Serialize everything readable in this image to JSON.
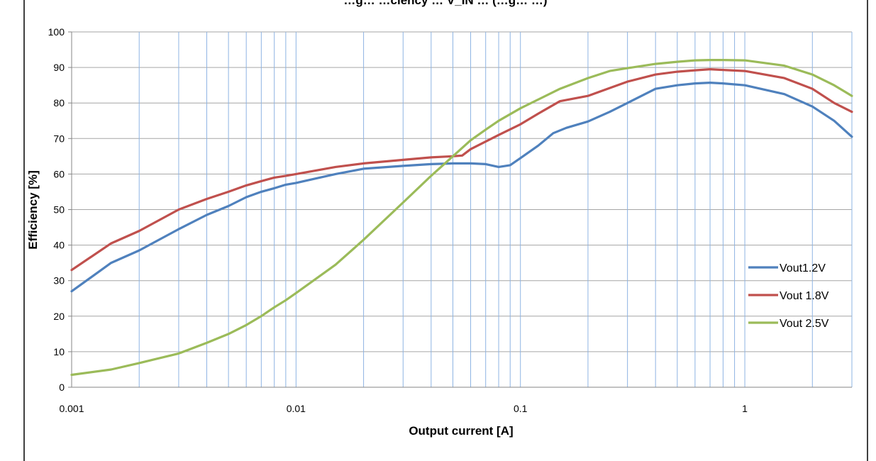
{
  "chart_data": {
    "type": "line",
    "title": "…g… …ciency … V_IN … (…g… …)",
    "xlabel": "Output current [A]",
    "ylabel": "Efficiency [%]",
    "x_scale": "log",
    "xlim": [
      0.001,
      3
    ],
    "ylim": [
      0,
      100
    ],
    "y_ticks": [
      0,
      10,
      20,
      30,
      40,
      50,
      60,
      70,
      80,
      90,
      100
    ],
    "x_tick_labels": [
      {
        "value": 0.001,
        "label": "0.001"
      },
      {
        "value": 0.01,
        "label": "0.01"
      },
      {
        "value": 0.1,
        "label": "0.1"
      },
      {
        "value": 1,
        "label": "1"
      }
    ],
    "x_minor_gridlines": [
      0.002,
      0.003,
      0.004,
      0.005,
      0.006,
      0.007,
      0.008,
      0.009,
      0.01,
      0.02,
      0.03,
      0.04,
      0.05,
      0.06,
      0.07,
      0.08,
      0.09,
      0.1,
      0.2,
      0.3,
      0.4,
      0.5,
      0.6,
      0.7,
      0.8,
      0.9,
      1,
      2,
      3
    ],
    "grid": true,
    "legend_position": "right",
    "series": [
      {
        "name": "Vout1.2V",
        "color": "#4f81bd",
        "x": [
          0.001,
          0.0015,
          0.002,
          0.003,
          0.004,
          0.005,
          0.006,
          0.007,
          0.008,
          0.009,
          0.01,
          0.015,
          0.02,
          0.03,
          0.04,
          0.05,
          0.06,
          0.07,
          0.08,
          0.09,
          0.1,
          0.12,
          0.14,
          0.16,
          0.2,
          0.25,
          0.3,
          0.4,
          0.5,
          0.6,
          0.7,
          0.8,
          1,
          1.5,
          2,
          2.5,
          3
        ],
        "y": [
          27,
          35,
          38.5,
          44.5,
          48.5,
          51,
          53.5,
          55,
          56,
          57,
          57.5,
          60,
          61.5,
          62.3,
          62.8,
          63,
          63,
          62.8,
          62,
          62.5,
          64.5,
          68,
          71.5,
          73,
          74.8,
          77.5,
          80,
          84,
          85,
          85.5,
          85.7,
          85.5,
          85,
          82.5,
          79,
          75,
          70.5
        ]
      },
      {
        "name": "Vout 1.8V",
        "color": "#c0504d",
        "x": [
          0.001,
          0.0015,
          0.002,
          0.003,
          0.004,
          0.005,
          0.006,
          0.007,
          0.008,
          0.009,
          0.01,
          0.015,
          0.02,
          0.03,
          0.04,
          0.05,
          0.055,
          0.06,
          0.08,
          0.1,
          0.12,
          0.15,
          0.2,
          0.3,
          0.4,
          0.5,
          0.6,
          0.7,
          0.8,
          1,
          1.5,
          2,
          2.5,
          3
        ],
        "y": [
          33,
          40.5,
          44,
          50,
          53,
          55,
          56.8,
          58,
          59,
          59.5,
          60,
          62,
          63,
          64,
          64.7,
          65,
          65.2,
          67,
          71,
          74,
          77,
          80.5,
          82,
          86,
          88,
          88.8,
          89.2,
          89.5,
          89.3,
          89,
          87,
          84,
          80,
          77.5
        ]
      },
      {
        "name": "Vout 2.5V",
        "color": "#9bbb59",
        "x": [
          0.001,
          0.0015,
          0.002,
          0.003,
          0.004,
          0.005,
          0.006,
          0.007,
          0.008,
          0.009,
          0.01,
          0.015,
          0.02,
          0.03,
          0.04,
          0.05,
          0.06,
          0.07,
          0.08,
          0.1,
          0.15,
          0.2,
          0.25,
          0.3,
          0.4,
          0.5,
          0.6,
          0.7,
          0.8,
          1,
          1.5,
          2,
          2.5,
          3
        ],
        "y": [
          3.5,
          5,
          6.8,
          9.5,
          12.5,
          15,
          17.5,
          20,
          22.5,
          24.5,
          26.5,
          34.5,
          41.5,
          52,
          59.5,
          65,
          69.5,
          72.5,
          75,
          78.5,
          84,
          87,
          89,
          89.8,
          91,
          91.6,
          92,
          92.1,
          92.1,
          92,
          90.5,
          88,
          85,
          82
        ]
      }
    ]
  }
}
